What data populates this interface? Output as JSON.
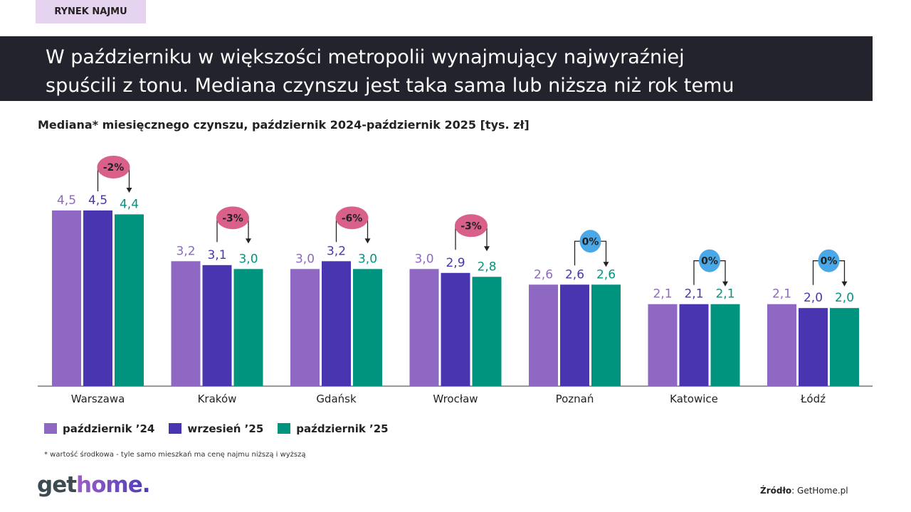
{
  "tag": "RYNEK NAJMU",
  "headline": [
    "W październiku w większości metropolii wynajmujący najwyraźniej",
    "spuścili z tonu. Mediana czynszu jest taka sama lub niższa niż rok temu"
  ],
  "footnote": "* wartość środkowa  - tyle samo mieszkań ma cenę najmu niższą i wyższą",
  "logo": {
    "part1": "get",
    "part2": "home."
  },
  "source": {
    "label": "Źródło",
    "value": ": GetHome.pl"
  },
  "chart_data": {
    "type": "bar",
    "title": "Mediana* miesięcznego czynszu, październik 2024-październik 2025 [tys. zł]",
    "categories": [
      "Warszawa",
      "Kraków",
      "Gdańsk",
      "Wrocław",
      "Poznań",
      "Katowice",
      "Łódź"
    ],
    "series": [
      {
        "name": "październik ’24",
        "color": "#8e68c2",
        "values": [
          4.5,
          3.2,
          3.0,
          3.0,
          2.6,
          2.1,
          2.1
        ],
        "labels": [
          "4,5",
          "3,2",
          "3,0",
          "3,0",
          "2,6",
          "2,1",
          "2,1"
        ]
      },
      {
        "name": "wrzesień ’25",
        "color": "#4a35b0",
        "values": [
          4.5,
          3.1,
          3.2,
          2.9,
          2.6,
          2.1,
          2.0
        ],
        "labels": [
          "4,5",
          "3,1",
          "3,2",
          "2,9",
          "2,6",
          "2,1",
          "2,0"
        ]
      },
      {
        "name": "październik ’25",
        "color": "#00947f",
        "values": [
          4.4,
          3.0,
          3.0,
          2.8,
          2.6,
          2.1,
          2.0
        ],
        "labels": [
          "4,4",
          "3,0",
          "3,0",
          "2,8",
          "2,6",
          "2,1",
          "2,0"
        ]
      }
    ],
    "changes": [
      "-2%",
      "-3%",
      "-6%",
      "-3%",
      "0%",
      "0%",
      "0%"
    ],
    "change_colors": {
      "negative": "#d9608a",
      "zero": "#4aa8e8"
    },
    "legend": "bottom-left",
    "grid": false
  }
}
